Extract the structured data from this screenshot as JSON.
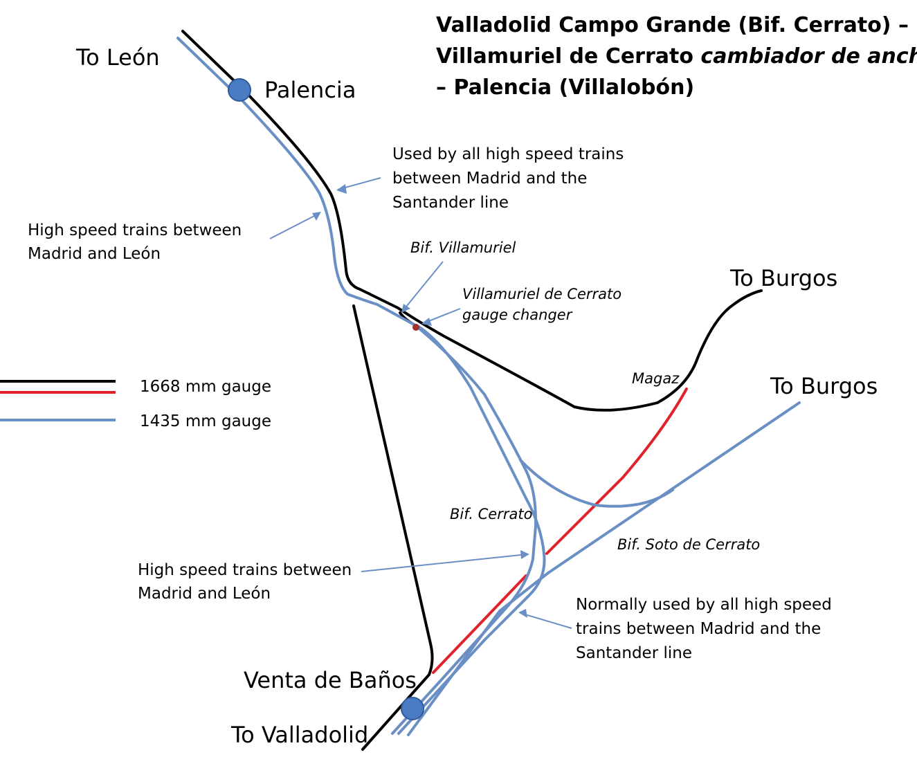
{
  "title": {
    "line1": "Valladolid Campo Grande (Bif. Cerrato) –",
    "line2_regular": "Villamuriel de Cerrato ",
    "line2_italic": "cambiador de ancho",
    "line3": "– Palencia (Villalobón)"
  },
  "places": {
    "to_leon": "To León",
    "palencia": "Palencia",
    "to_burgos_1": "To Burgos",
    "to_burgos_2": "To Burgos",
    "venta_de_banos": "Venta de Baños",
    "to_valladolid": "To Valladolid"
  },
  "junctions": {
    "bif_villamuriel": "Bif. Villamuriel",
    "gauge_changer_1": "Villamuriel de Cerrato",
    "gauge_changer_2": "gauge changer",
    "magaz": "Magaz",
    "bif_cerrato": "Bif. Cerrato",
    "bif_soto": "Bif. Soto de Cerrato"
  },
  "notes": {
    "santander_top_1": "Used by all high speed trains",
    "santander_top_2": "between Madrid and the",
    "santander_top_3": "Santander line",
    "leon_top_1": "High speed trains between",
    "leon_top_2": "Madrid and León",
    "leon_bottom_1": "High speed trains between",
    "leon_bottom_2": "Madrid and León",
    "santander_bottom_1": "Normally used by all high speed",
    "santander_bottom_2": "trains between Madrid and the",
    "santander_bottom_3": "Santander line"
  },
  "legend": {
    "iberian": "1668 mm gauge",
    "standard": "1435 mm gauge"
  },
  "colors": {
    "iberian_gauge": "#000000",
    "iberian_gauge_alt": "#e0232b",
    "standard_gauge": "#6a8fc4",
    "station": "#4a7cc4",
    "gauge_changer": "#a0302a"
  }
}
